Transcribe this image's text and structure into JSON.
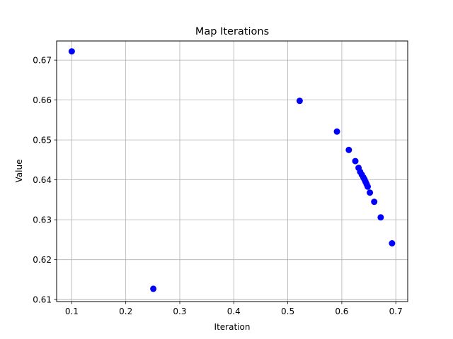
{
  "chart_data": {
    "type": "scatter",
    "title": "Map Iterations",
    "xlabel": "Iteration",
    "ylabel": "Value",
    "xlim": [
      0.072,
      0.722
    ],
    "ylim": [
      0.6095,
      0.6748
    ],
    "xticks": [
      0.1,
      0.2,
      0.3,
      0.4,
      0.5,
      0.6,
      0.7
    ],
    "xtick_labels": [
      "0.1",
      "0.2",
      "0.3",
      "0.4",
      "0.5",
      "0.6",
      "0.7"
    ],
    "yticks": [
      0.61,
      0.62,
      0.63,
      0.64,
      0.65,
      0.66,
      0.67
    ],
    "ytick_labels": [
      "0.61",
      "0.62",
      "0.63",
      "0.64",
      "0.65",
      "0.66",
      "0.67"
    ],
    "grid": true,
    "marker_color": "#0000ff",
    "series": [
      {
        "x": [
          0.1,
          0.251,
          0.522,
          0.591,
          0.613,
          0.625,
          0.631,
          0.634,
          0.637,
          0.64,
          0.642,
          0.644,
          0.646,
          0.648,
          0.652,
          0.66,
          0.672,
          0.693
        ],
        "y": [
          0.6722,
          0.6127,
          0.6598,
          0.6521,
          0.6475,
          0.6447,
          0.643,
          0.642,
          0.6413,
          0.6406,
          0.6401,
          0.6395,
          0.6389,
          0.6383,
          0.6368,
          0.6345,
          0.6306,
          0.6241
        ]
      }
    ]
  }
}
